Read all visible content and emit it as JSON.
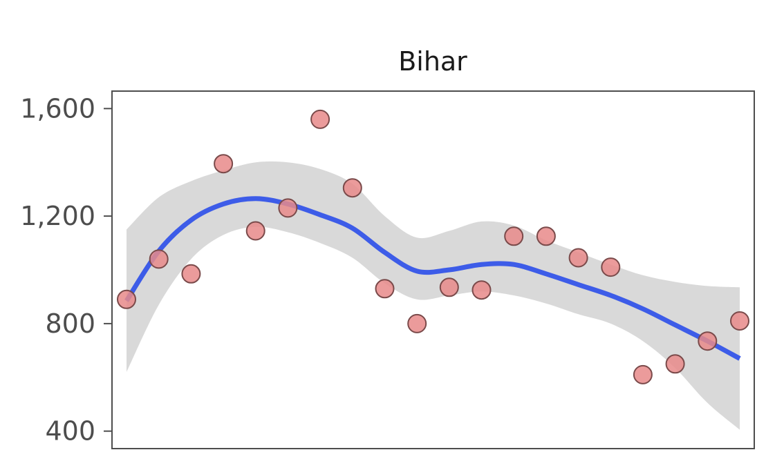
{
  "chart_data": {
    "type": "scatter",
    "title": "Bihar",
    "xlabel": "",
    "ylabel": "",
    "ylim": [
      335,
      1665
    ],
    "xlim": [
      0.55,
      20.45
    ],
    "y_ticks": [
      {
        "value": 400,
        "label": "400"
      },
      {
        "value": 800,
        "label": "800"
      },
      {
        "value": 1200,
        "label": "1,200"
      },
      {
        "value": 1600,
        "label": "1,600"
      }
    ],
    "grid": false,
    "legend": "none",
    "x_ticks_shown": false,
    "series": [
      {
        "type": "scatter",
        "x": [
          1,
          2,
          3,
          4,
          5,
          6,
          7,
          8,
          9,
          10,
          11,
          12,
          13,
          14,
          15,
          16,
          17,
          18,
          19,
          20
        ],
        "y": [
          890,
          1040,
          985,
          1395,
          1145,
          1230,
          1560,
          1305,
          930,
          800,
          935,
          925,
          1125,
          1125,
          1045,
          1010,
          610,
          650,
          735,
          810
        ]
      },
      {
        "type": "line",
        "x": [
          1,
          2,
          3,
          4,
          5,
          6,
          7,
          8,
          9,
          10,
          11,
          12,
          13,
          14,
          15,
          16,
          17,
          18,
          19,
          20
        ],
        "y": [
          885,
          1070,
          1185,
          1245,
          1265,
          1245,
          1205,
          1155,
          1065,
          995,
          1000,
          1020,
          1020,
          985,
          945,
          905,
          855,
          795,
          735,
          670
        ]
      },
      {
        "type": "band",
        "x": [
          1,
          2,
          3,
          4,
          5,
          6,
          7,
          8,
          9,
          10,
          11,
          12,
          13,
          14,
          15,
          16,
          17,
          18,
          19,
          20
        ],
        "lower": [
          620,
          870,
          1040,
          1130,
          1160,
          1140,
          1100,
          1045,
          950,
          890,
          905,
          920,
          905,
          875,
          835,
          800,
          735,
          635,
          505,
          405
        ],
        "upper": [
          1150,
          1270,
          1330,
          1370,
          1400,
          1400,
          1375,
          1320,
          1200,
          1120,
          1145,
          1180,
          1165,
          1110,
          1065,
          1020,
          980,
          955,
          940,
          935
        ]
      }
    ],
    "colors": {
      "point_fill": "#e7898a",
      "point_stroke": "#7a4a4a",
      "line": "#3d5ce8",
      "band": "#d9d9d9",
      "frame": "#4d4d4d"
    }
  }
}
